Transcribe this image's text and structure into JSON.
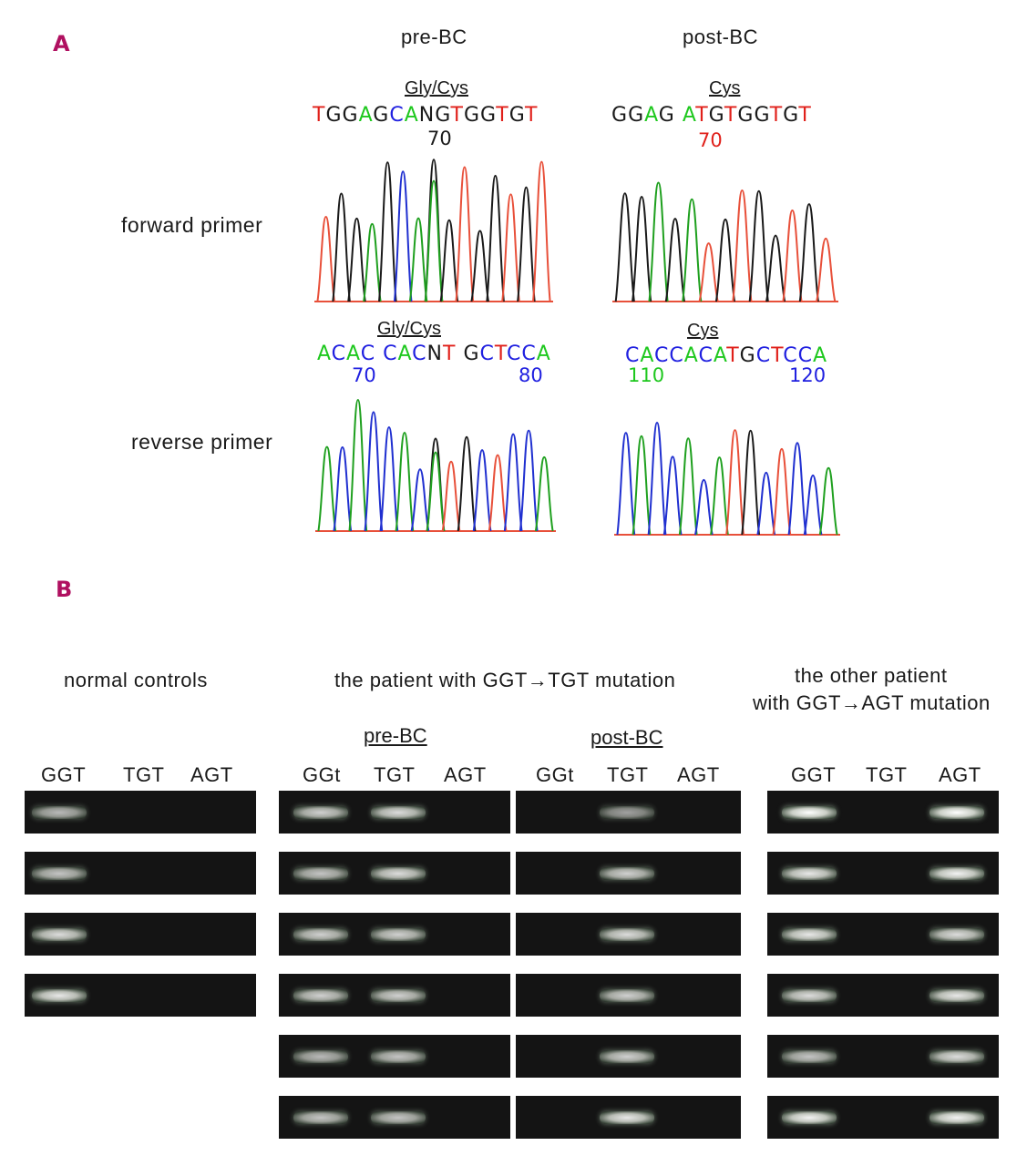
{
  "panel_a": {
    "letter": "A",
    "columns": [
      "pre-BC",
      "post-BC"
    ],
    "rows": [
      "forward primer",
      "reverse primer"
    ],
    "chromatograms": [
      {
        "id": "pre-forward",
        "amino_acid": "Gly/Cys",
        "sequence": "TGGAGCANGTGGTGT",
        "position_labels": [
          "70"
        ]
      },
      {
        "id": "post-forward",
        "amino_acid": "Cys",
        "sequence": "GGAG ATGTGGTGT",
        "position_labels": [
          "70"
        ]
      },
      {
        "id": "pre-reverse",
        "amino_acid": "Gly/Cys",
        "sequence": "ACAC CACNT GCTCCA",
        "position_labels": [
          "70",
          "80"
        ]
      },
      {
        "id": "post-reverse",
        "amino_acid": "Cys",
        "sequence": "CACCACATGCTCCA",
        "position_labels": [
          "110",
          "120"
        ]
      }
    ],
    "base_colors": {
      "A": "#1ec81e",
      "C": "#2020e0",
      "G": "#1a1a1a",
      "T": "#e0201a",
      "N": "#1a1a1a"
    }
  },
  "panel_b": {
    "letter": "B",
    "groups": [
      {
        "title": "normal controls",
        "lanes": [
          "GGT",
          "TGT",
          "AGT"
        ],
        "gel_rows": 4,
        "bands": [
          [
            0.7,
            0,
            0
          ],
          [
            0.75,
            0,
            0
          ],
          [
            0.85,
            0,
            0
          ],
          [
            0.9,
            0,
            0
          ]
        ]
      },
      {
        "title": "the patient with GGT→TGT mutation",
        "subgroups": [
          {
            "title": "pre-BC",
            "lanes": [
              "GGt",
              "TGT",
              "AGT"
            ],
            "gel_rows": 6,
            "bands": [
              [
                0.8,
                0.85,
                0
              ],
              [
                0.75,
                0.85,
                0
              ],
              [
                0.8,
                0.8,
                0
              ],
              [
                0.8,
                0.8,
                0
              ],
              [
                0.7,
                0.75,
                0
              ],
              [
                0.75,
                0.75,
                0
              ]
            ]
          },
          {
            "title": "post-BC",
            "lanes": [
              "GGt",
              "TGT",
              "AGT"
            ],
            "gel_rows": 6,
            "bands": [
              [
                0,
                0.6,
                0
              ],
              [
                0,
                0.8,
                0
              ],
              [
                0,
                0.85,
                0
              ],
              [
                0,
                0.8,
                0
              ],
              [
                0,
                0.8,
                0
              ],
              [
                0,
                0.9,
                0
              ]
            ]
          }
        ]
      },
      {
        "title": "the other patient",
        "title_line2": "with GGT→AGT mutation",
        "lanes": [
          "GGT",
          "TGT",
          "AGT"
        ],
        "gel_rows": 6,
        "bands": [
          [
            1,
            0,
            1
          ],
          [
            0.9,
            0,
            0.95
          ],
          [
            0.9,
            0,
            0.85
          ],
          [
            0.85,
            0,
            0.9
          ],
          [
            0.75,
            0,
            0.85
          ],
          [
            0.95,
            0,
            0.95
          ]
        ]
      }
    ]
  }
}
